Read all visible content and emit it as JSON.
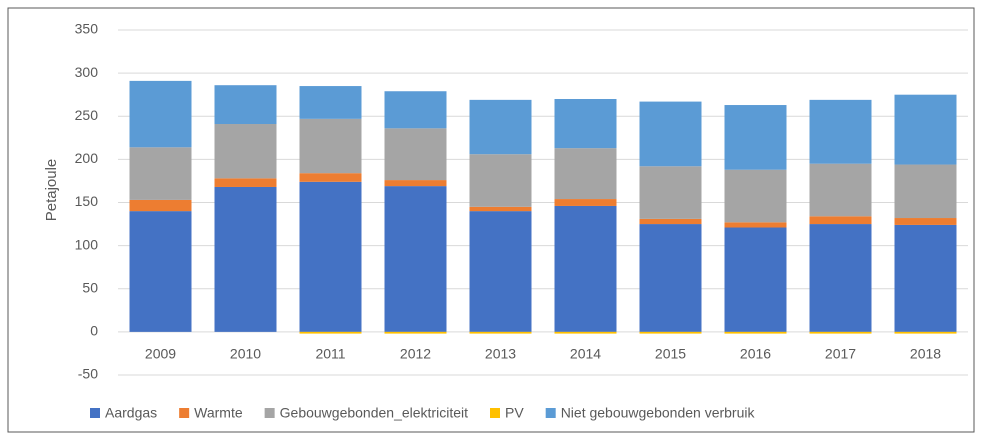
{
  "chart_data": {
    "type": "stacked_bar",
    "y_label": "Petajoule",
    "categories": [
      "2009",
      "2010",
      "2011",
      "2012",
      "2013",
      "2014",
      "2015",
      "2016",
      "2017",
      "2018"
    ],
    "series": [
      {
        "name": "Aardgas",
        "color": "#4472c4",
        "values": [
          140,
          168,
          174,
          169,
          140,
          146,
          125,
          121,
          125,
          124
        ]
      },
      {
        "name": "Warmte",
        "color": "#ed7d31",
        "values": [
          13,
          10,
          10,
          7,
          5,
          8,
          6,
          6,
          9,
          8
        ]
      },
      {
        "name": "Gebouwgebonden_elektriciteit",
        "color": "#a5a5a5",
        "values": [
          61,
          63,
          63,
          60,
          61,
          59,
          61,
          61,
          61,
          62
        ]
      },
      {
        "name": "PV",
        "color": "#ffc000",
        "values": [
          0,
          0,
          -2,
          -2,
          -2,
          -2,
          -2,
          -2,
          -2,
          -2
        ]
      },
      {
        "name": "Niet gebouwgebonden verbruik",
        "color": "#5b9bd5",
        "values": [
          77,
          45,
          38,
          43,
          63,
          57,
          75,
          75,
          74,
          81
        ]
      }
    ],
    "ylim": [
      -50,
      350
    ],
    "yticks": [
      -50,
      0,
      50,
      100,
      150,
      200,
      250,
      300,
      350
    ],
    "grid": true,
    "legend": "bottom"
  }
}
